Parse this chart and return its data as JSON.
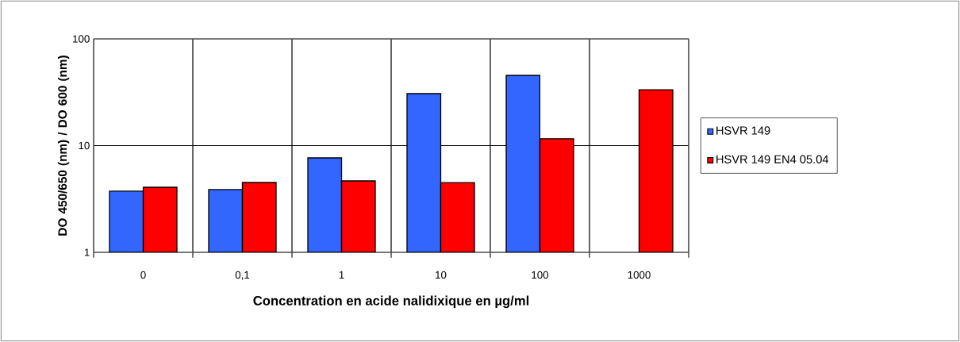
{
  "chart_data": {
    "type": "bar",
    "xlabel": "Concentration en acide nalidixique en µg/ml",
    "ylabel": "DO 450/650 (nm) / DO 600 (nm)",
    "categories": [
      "0",
      "0,1",
      "1",
      "10",
      "100",
      "1000"
    ],
    "series": [
      {
        "name": "HSVR 149",
        "color": "#3366ff",
        "values": [
          3.74,
          3.87,
          7.67,
          30.7,
          45.5,
          null
        ]
      },
      {
        "name": "HSVR 149 EN4 05.04",
        "color": "#ff0000",
        "values": [
          4.07,
          4.51,
          4.67,
          4.5,
          11.6,
          33.4
        ]
      }
    ],
    "log": "y",
    "ylim": [
      1,
      100
    ],
    "yticks": [
      1,
      10,
      100
    ],
    "grid": true,
    "legend": "right"
  }
}
